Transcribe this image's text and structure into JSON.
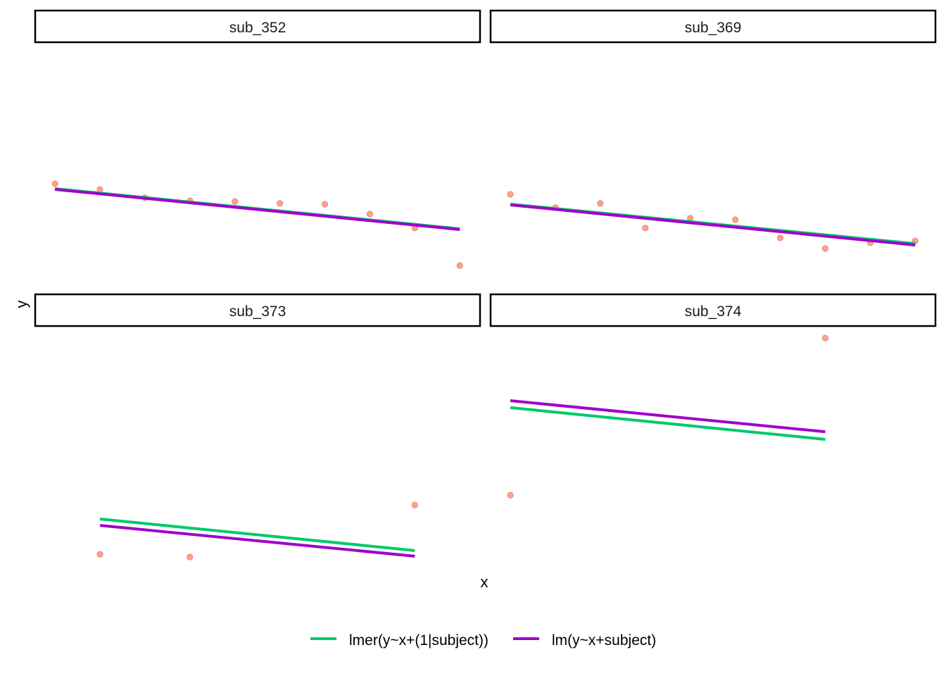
{
  "chart_data": {
    "type": "scatter",
    "title": "",
    "xlabel": "x",
    "ylabel": "y",
    "xlim": [
      0.56,
      10.45
    ],
    "ylim": [
      0,
      10
    ],
    "grid": false,
    "axis_ticks": false,
    "legend_position": "bottom",
    "point_color": "#F8A28F",
    "legend": [
      {
        "label": "lmer(y~x+(1|subject))",
        "color": "#00C96B"
      },
      {
        "label": "lm(y~x+subject)",
        "color": "#A000CC"
      }
    ],
    "panels": [
      {
        "strip": "sub_352",
        "points": {
          "x": [
            1,
            2,
            3,
            4,
            5,
            6,
            7,
            8,
            9,
            10
          ],
          "y": [
            4.26,
            4.03,
            3.69,
            3.57,
            3.54,
            3.46,
            3.43,
            3.03,
            2.46,
            0.94
          ]
        },
        "lines": [
          {
            "model": "lmer(y~x+(1|subject))",
            "x": [
              1,
              10
            ],
            "y": [
              4.06,
              2.43
            ]
          },
          {
            "model": "lm(y~x+subject)",
            "x": [
              1,
              10
            ],
            "y": [
              4.03,
              2.4
            ]
          }
        ]
      },
      {
        "strip": "sub_369",
        "points": {
          "x": [
            1,
            2,
            3,
            4,
            5,
            6,
            7,
            8,
            9,
            10
          ],
          "y": [
            3.83,
            3.29,
            3.46,
            2.46,
            2.86,
            2.8,
            2.06,
            1.63,
            1.86,
            1.94
          ]
        },
        "lines": [
          {
            "model": "lmer(y~x+(1|subject))",
            "x": [
              1,
              10
            ],
            "y": [
              3.43,
              1.83
            ]
          },
          {
            "model": "lm(y~x+subject)",
            "x": [
              1,
              10
            ],
            "y": [
              3.4,
              1.77
            ]
          }
        ]
      },
      {
        "strip": "sub_373",
        "points": {
          "x": [
            2,
            4,
            9
          ],
          "y": [
            0.74,
            0.63,
            2.74
          ]
        },
        "lines": [
          {
            "model": "lmer(y~x+(1|subject))",
            "x": [
              2,
              9
            ],
            "y": [
              2.17,
              0.89
            ]
          },
          {
            "model": "lm(y~x+subject)",
            "x": [
              2,
              9
            ],
            "y": [
              1.91,
              0.66
            ]
          }
        ]
      },
      {
        "strip": "sub_374",
        "points": {
          "x": [
            1,
            8
          ],
          "y": [
            3.14,
            9.51
          ]
        },
        "lines": [
          {
            "model": "lmer(y~x+(1|subject))",
            "x": [
              1,
              8
            ],
            "y": [
              6.69,
              5.4
            ]
          },
          {
            "model": "lm(y~x+subject)",
            "x": [
              1,
              8
            ],
            "y": [
              6.97,
              5.71
            ]
          }
        ]
      }
    ]
  }
}
